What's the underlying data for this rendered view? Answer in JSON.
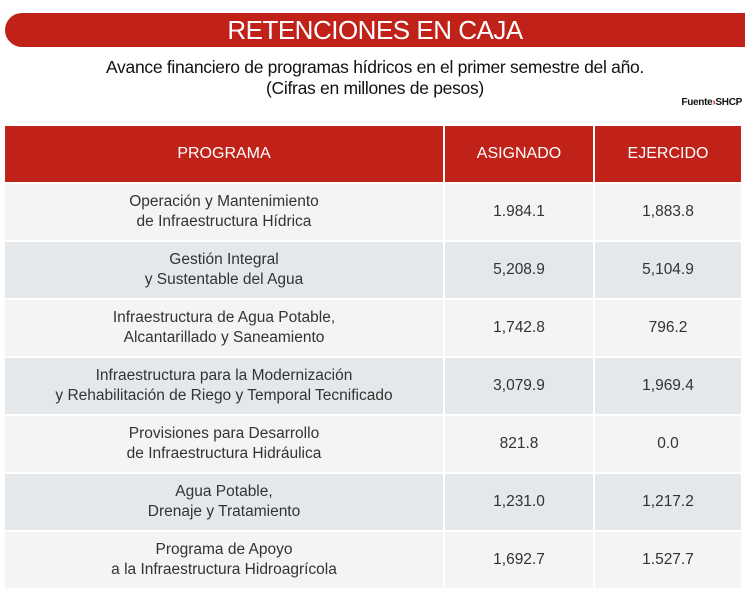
{
  "title": "RETENCIONES EN CAJA",
  "subtitle_line1": "Avance financiero de programas hídricos en el primer semestre del año.",
  "subtitle_line2": "(Cifras en millones de pesos)",
  "source_label": "Fuente",
  "source_arrow": "›",
  "source_value": "SHCP",
  "accent_color": "#c0221a",
  "table": {
    "headers": [
      "PROGRAMA",
      "ASIGNADO",
      "EJERCIDO"
    ],
    "rows": [
      {
        "programa_line1": "Operación y Mantenimiento",
        "programa_line2": "de Infraestructura Hídrica",
        "asignado": "1.984.1",
        "ejercido": "1,883.8"
      },
      {
        "programa_line1": "Gestión Integral",
        "programa_line2": "y Sustentable del Agua",
        "asignado": "5,208.9",
        "ejercido": "5,104.9"
      },
      {
        "programa_line1": "Infraestructura de Agua Potable,",
        "programa_line2": "Alcantarillado y Saneamiento",
        "asignado": "1,742.8",
        "ejercido": "796.2"
      },
      {
        "programa_line1": "Infraestructura para la Modernización",
        "programa_line2": "y Rehabilitación de Riego y Temporal Tecnificado",
        "asignado": "3,079.9",
        "ejercido": "1,969.4"
      },
      {
        "programa_line1": "Provisiones para Desarrollo",
        "programa_line2": "de Infraestructura Hidráulica",
        "asignado": "821.8",
        "ejercido": "0.0"
      },
      {
        "programa_line1": "Agua Potable,",
        "programa_line2": "Drenaje y Tratamiento",
        "asignado": "1,231.0",
        "ejercido": "1,217.2"
      },
      {
        "programa_line1": "Programa de Apoyo",
        "programa_line2": "a la Infraestructura Hidroagrícola",
        "asignado": "1,692.7",
        "ejercido": "1.527.7"
      }
    ]
  }
}
